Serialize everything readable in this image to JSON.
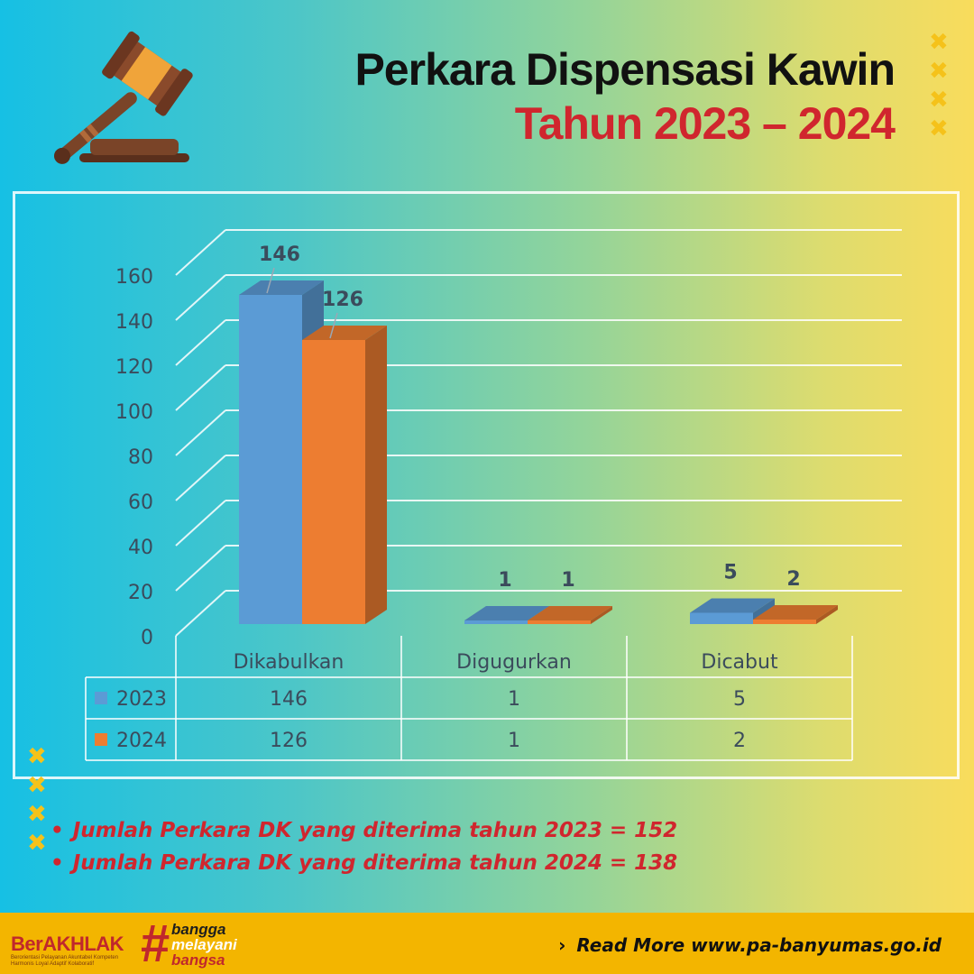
{
  "header": {
    "title": "Perkara Dispensasi Kawin",
    "subtitle": "Tahun 2023 – 2024"
  },
  "decor": {
    "gavel_icon": "gavel-icon",
    "x_mark": "✖",
    "accent_color": "#f5c21a"
  },
  "chart_data": {
    "type": "bar",
    "categories": [
      "Dikabulkan",
      "Digugurkan",
      "Dicabut"
    ],
    "series": [
      {
        "name": "2023",
        "values": [
          146,
          1,
          5
        ],
        "color": "#5b9bd5"
      },
      {
        "name": "2024",
        "values": [
          126,
          1,
          2
        ],
        "color": "#ed7d31"
      }
    ],
    "y_ticks": [
      "0",
      "20",
      "40",
      "60",
      "80",
      "100",
      "120",
      "140",
      "160"
    ],
    "ylim": [
      0,
      160
    ],
    "grid": true,
    "legend": "data-table",
    "table": {
      "rows": [
        {
          "label": "2023",
          "cells": [
            "146",
            "1",
            "5"
          ]
        },
        {
          "label": "2024",
          "cells": [
            "126",
            "1",
            "2"
          ]
        }
      ]
    },
    "data_labels": [
      [
        "146",
        "1",
        "5"
      ],
      [
        "126",
        "1",
        "2"
      ]
    ]
  },
  "notes": [
    "Jumlah Perkara DK yang diterima tahun 2023 = 152",
    "Jumlah Perkara DK yang diterima tahun 2024 = 138"
  ],
  "footer": {
    "brand_main": "BerAKHLAK",
    "brand_sub": "Berorientasi Pelayanan Akuntabel Kompeten Harmonis Loyal Adaptif Kolaboratif",
    "hash": "#",
    "tag_line1": "bangga",
    "tag_line2": "melayani",
    "tag_line3": "bangsa",
    "read_more": "Read More www.pa-banyumas.go.id"
  }
}
